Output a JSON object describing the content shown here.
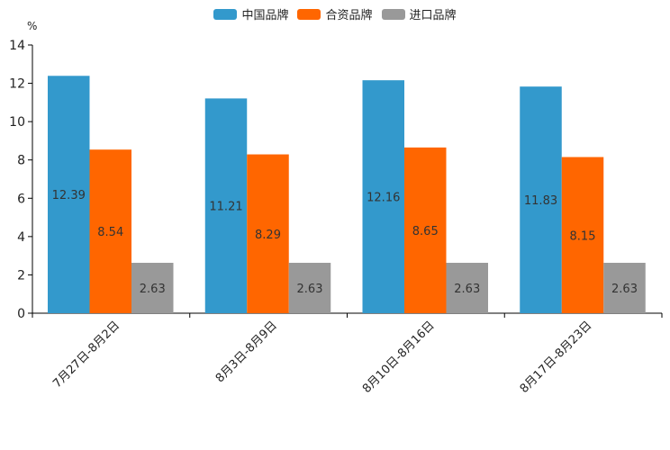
{
  "chart_data": {
    "type": "bar",
    "title": "",
    "xlabel": "",
    "ylabel": "%",
    "ylim": [
      0,
      14
    ],
    "yticks": [
      0,
      2,
      4,
      6,
      8,
      10,
      12,
      14
    ],
    "grid": false,
    "legend_position": "top-center",
    "categories": [
      "7月27日-8月2日",
      "8月3日-8月9日",
      "8月10日-8月16日",
      "8月17日-8月23日"
    ],
    "series": [
      {
        "name": "中国品牌",
        "color": "#3399cc",
        "values": [
          12.39,
          11.21,
          12.16,
          11.83
        ],
        "labels": [
          "12.39",
          "11.21",
          "12.16",
          "11.83"
        ]
      },
      {
        "name": "合资品牌",
        "color": "#ff6600",
        "values": [
          8.54,
          8.29,
          8.65,
          8.15
        ],
        "labels": [
          "8.54",
          "8.29",
          "8.65",
          "8.15"
        ]
      },
      {
        "name": "进口品牌",
        "color": "#999999",
        "values": [
          2.63,
          2.63,
          2.63,
          2.63
        ],
        "labels": [
          "2.63",
          "2.63",
          "2.63",
          "2.63"
        ]
      }
    ]
  }
}
